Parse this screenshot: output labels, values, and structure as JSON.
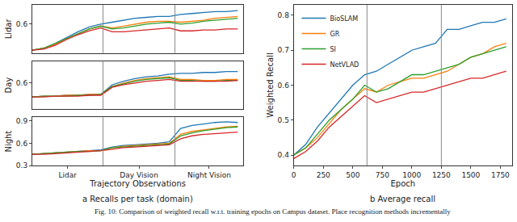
{
  "chart_data": [
    {
      "type": "line",
      "y_label": "Lidar",
      "tick_labels": "y",
      "grid": false,
      "x": [
        0,
        100,
        200,
        300,
        400,
        500,
        600,
        700,
        800,
        900,
        1000,
        1100,
        1200,
        1300,
        1400,
        1500,
        1600,
        1700,
        1800
      ],
      "xlim": [
        0,
        1850
      ],
      "ylim": [
        0.3,
        0.8
      ],
      "yticks": [
        0.6
      ],
      "boundaries": [
        620,
        1250
      ],
      "series": [
        {
          "color": "#1f77b4",
          "values": [
            0.33,
            0.35,
            0.4,
            0.46,
            0.52,
            0.57,
            0.6,
            0.62,
            0.64,
            0.66,
            0.67,
            0.68,
            0.68,
            0.7,
            0.71,
            0.72,
            0.73,
            0.73,
            0.74
          ]
        },
        {
          "color": "#ff7f0e",
          "values": [
            0.33,
            0.35,
            0.39,
            0.45,
            0.5,
            0.55,
            0.58,
            0.56,
            0.58,
            0.6,
            0.62,
            0.63,
            0.63,
            0.62,
            0.63,
            0.64,
            0.66,
            0.67,
            0.68
          ]
        },
        {
          "color": "#2ca02c",
          "values": [
            0.33,
            0.35,
            0.4,
            0.45,
            0.5,
            0.55,
            0.58,
            0.55,
            0.56,
            0.58,
            0.6,
            0.61,
            0.62,
            0.6,
            0.61,
            0.63,
            0.64,
            0.65,
            0.66
          ]
        },
        {
          "color": "#d62728",
          "values": [
            0.33,
            0.34,
            0.38,
            0.44,
            0.49,
            0.53,
            0.56,
            0.52,
            0.52,
            0.53,
            0.54,
            0.55,
            0.56,
            0.53,
            0.53,
            0.54,
            0.54,
            0.55,
            0.55
          ]
        }
      ]
    },
    {
      "type": "line",
      "y_label": "Day",
      "tick_labels": "y",
      "grid": false,
      "x": [
        0,
        100,
        200,
        300,
        400,
        500,
        600,
        700,
        800,
        900,
        1000,
        1100,
        1200,
        1300,
        1400,
        1500,
        1600,
        1700,
        1800
      ],
      "xlim": [
        0,
        1850
      ],
      "ylim": [
        0.3,
        0.85
      ],
      "yticks": [
        0.6
      ],
      "boundaries": [
        620,
        1250
      ],
      "series": [
        {
          "color": "#1f77b4",
          "values": [
            0.44,
            0.45,
            0.45,
            0.46,
            0.46,
            0.47,
            0.47,
            0.58,
            0.62,
            0.65,
            0.67,
            0.68,
            0.7,
            0.71,
            0.71,
            0.72,
            0.72,
            0.73,
            0.73
          ]
        },
        {
          "color": "#ff7f0e",
          "values": [
            0.44,
            0.45,
            0.45,
            0.46,
            0.46,
            0.47,
            0.47,
            0.56,
            0.6,
            0.63,
            0.65,
            0.66,
            0.67,
            0.64,
            0.64,
            0.63,
            0.63,
            0.64,
            0.64
          ]
        },
        {
          "color": "#2ca02c",
          "values": [
            0.44,
            0.45,
            0.45,
            0.45,
            0.46,
            0.46,
            0.47,
            0.56,
            0.59,
            0.62,
            0.64,
            0.65,
            0.66,
            0.63,
            0.63,
            0.62,
            0.62,
            0.63,
            0.63
          ]
        },
        {
          "color": "#d62728",
          "values": [
            0.44,
            0.44,
            0.45,
            0.45,
            0.45,
            0.46,
            0.46,
            0.55,
            0.58,
            0.6,
            0.62,
            0.63,
            0.64,
            0.62,
            0.62,
            0.62,
            0.62,
            0.62,
            0.63
          ]
        }
      ]
    },
    {
      "type": "line",
      "y_label": "Night",
      "x_label": "Trajectory Observations",
      "grid": false,
      "x": [
        0,
        100,
        200,
        300,
        400,
        500,
        600,
        700,
        800,
        900,
        1000,
        1100,
        1200,
        1300,
        1400,
        1500,
        1600,
        1700,
        1800
      ],
      "xlim": [
        0,
        1850
      ],
      "xticks": [
        {
          "value": 310,
          "label": "Lidar"
        },
        {
          "value": 935,
          "label": "Day Vision"
        },
        {
          "value": 1550,
          "label": "Night Vision"
        }
      ],
      "ylim": [
        0.3,
        0.95
      ],
      "yticks": [
        0.3,
        0.6,
        0.9
      ],
      "boundaries": [
        620,
        1250
      ],
      "series": [
        {
          "color": "#1f77b4",
          "values": [
            0.45,
            0.46,
            0.47,
            0.48,
            0.49,
            0.5,
            0.51,
            0.55,
            0.57,
            0.58,
            0.59,
            0.6,
            0.62,
            0.8,
            0.84,
            0.86,
            0.88,
            0.89,
            0.88
          ]
        },
        {
          "color": "#ff7f0e",
          "values": [
            0.45,
            0.46,
            0.47,
            0.48,
            0.49,
            0.5,
            0.5,
            0.54,
            0.56,
            0.57,
            0.58,
            0.59,
            0.6,
            0.72,
            0.76,
            0.78,
            0.8,
            0.82,
            0.83
          ]
        },
        {
          "color": "#2ca02c",
          "values": [
            0.45,
            0.46,
            0.47,
            0.48,
            0.49,
            0.49,
            0.5,
            0.54,
            0.55,
            0.56,
            0.57,
            0.58,
            0.59,
            0.7,
            0.74,
            0.77,
            0.79,
            0.81,
            0.82
          ]
        },
        {
          "color": "#d62728",
          "values": [
            0.45,
            0.45,
            0.46,
            0.47,
            0.48,
            0.49,
            0.5,
            0.52,
            0.54,
            0.55,
            0.56,
            0.57,
            0.58,
            0.66,
            0.7,
            0.72,
            0.73,
            0.74,
            0.75
          ]
        }
      ]
    },
    {
      "type": "line",
      "y_label": "Weighted Recall",
      "x_label": "Epoch",
      "grid": false,
      "legend": "upper left",
      "x": [
        0,
        100,
        200,
        300,
        400,
        500,
        600,
        700,
        800,
        900,
        1000,
        1100,
        1200,
        1300,
        1400,
        1500,
        1600,
        1700,
        1800
      ],
      "xlim": [
        0,
        1850
      ],
      "xticks": [
        0,
        250,
        500,
        750,
        1000,
        1250,
        1500,
        1750
      ],
      "ylim": [
        0.37,
        0.83
      ],
      "yticks": [
        0.4,
        0.5,
        0.6,
        0.7,
        0.8
      ],
      "boundaries": [
        620,
        1250
      ],
      "series": [
        {
          "name": "BioSLAM",
          "color": "#1f77b4",
          "values": [
            0.4,
            0.43,
            0.48,
            0.52,
            0.56,
            0.6,
            0.63,
            0.64,
            0.66,
            0.68,
            0.7,
            0.71,
            0.72,
            0.76,
            0.76,
            0.77,
            0.78,
            0.78,
            0.79
          ]
        },
        {
          "name": "GR",
          "color": "#ff7f0e",
          "values": [
            0.4,
            0.42,
            0.45,
            0.49,
            0.53,
            0.56,
            0.59,
            0.58,
            0.6,
            0.61,
            0.62,
            0.62,
            0.63,
            0.64,
            0.66,
            0.68,
            0.69,
            0.71,
            0.72
          ]
        },
        {
          "name": "SI",
          "color": "#2ca02c",
          "values": [
            0.4,
            0.42,
            0.46,
            0.5,
            0.53,
            0.56,
            0.6,
            0.58,
            0.59,
            0.61,
            0.63,
            0.63,
            0.64,
            0.65,
            0.66,
            0.68,
            0.69,
            0.7,
            0.71
          ]
        },
        {
          "name": "NetVLAD",
          "color": "#d62728",
          "values": [
            0.39,
            0.41,
            0.44,
            0.48,
            0.51,
            0.54,
            0.57,
            0.55,
            0.56,
            0.57,
            0.58,
            0.58,
            0.59,
            0.6,
            0.61,
            0.62,
            0.62,
            0.63,
            0.64
          ]
        }
      ]
    }
  ],
  "panel_labels": [
    "a Recalls per task (domain)",
    "b Average recall"
  ],
  "caption": "Fig. 10: Comparison of weighted recall w.r.t. training epochs on Campus dataset. Place recognition methods incrementally"
}
